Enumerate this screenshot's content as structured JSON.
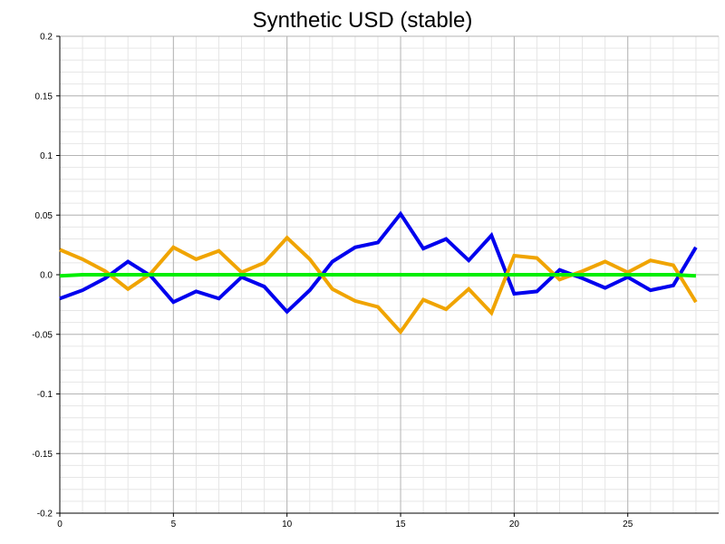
{
  "chart_data": {
    "type": "line",
    "title": "Synthetic USD (stable)",
    "xlabel": "",
    "ylabel": "",
    "xlim": [
      0,
      29
    ],
    "ylim": [
      -0.2,
      0.2
    ],
    "x_ticks": [
      0,
      5,
      10,
      15,
      20,
      25
    ],
    "x_tick_labels": [
      "0",
      "5",
      "10",
      "15",
      "20",
      "25"
    ],
    "y_ticks": [
      0.2,
      0.15,
      0.1,
      0.05,
      0.0,
      -0.05,
      -0.1,
      -0.15,
      -0.2
    ],
    "y_tick_labels": [
      "0.2",
      "0.15",
      "0.1",
      "0.05",
      "0.0",
      "-0.05",
      "-0.1",
      "-0.15",
      "-0.2"
    ],
    "grid": true,
    "legend": "none",
    "x": [
      0,
      1,
      2,
      3,
      4,
      5,
      6,
      7,
      8,
      9,
      10,
      11,
      12,
      13,
      14,
      15,
      16,
      17,
      18,
      19,
      20,
      21,
      22,
      23,
      24,
      25,
      26,
      27,
      28
    ],
    "series": [
      {
        "color": "#0000ee",
        "values": [
          -0.02,
          -0.013,
          -0.003,
          0.011,
          -0.001,
          -0.023,
          -0.014,
          -0.02,
          -0.002,
          -0.01,
          -0.031,
          -0.013,
          0.011,
          0.023,
          0.027,
          0.051,
          0.022,
          0.03,
          0.012,
          0.033,
          -0.016,
          -0.014,
          0.004,
          -0.003,
          -0.011,
          -0.002,
          -0.013,
          -0.009,
          0.023
        ]
      },
      {
        "color": "#f0a400",
        "values": [
          0.021,
          0.013,
          0.003,
          -0.012,
          0.001,
          0.023,
          0.013,
          0.02,
          0.002,
          0.01,
          0.031,
          0.013,
          -0.012,
          -0.022,
          -0.027,
          -0.048,
          -0.021,
          -0.029,
          -0.012,
          -0.032,
          0.016,
          0.014,
          -0.004,
          0.003,
          0.011,
          0.002,
          0.012,
          0.008,
          -0.023
        ]
      },
      {
        "color": "#00ee00",
        "values": [
          -0.001,
          0,
          0,
          0,
          0,
          0,
          0,
          0,
          0,
          0,
          0,
          0,
          0,
          0,
          0,
          0,
          0,
          0,
          0,
          0,
          0,
          0,
          0,
          0,
          0,
          0,
          0,
          0,
          -0.001
        ]
      }
    ]
  }
}
